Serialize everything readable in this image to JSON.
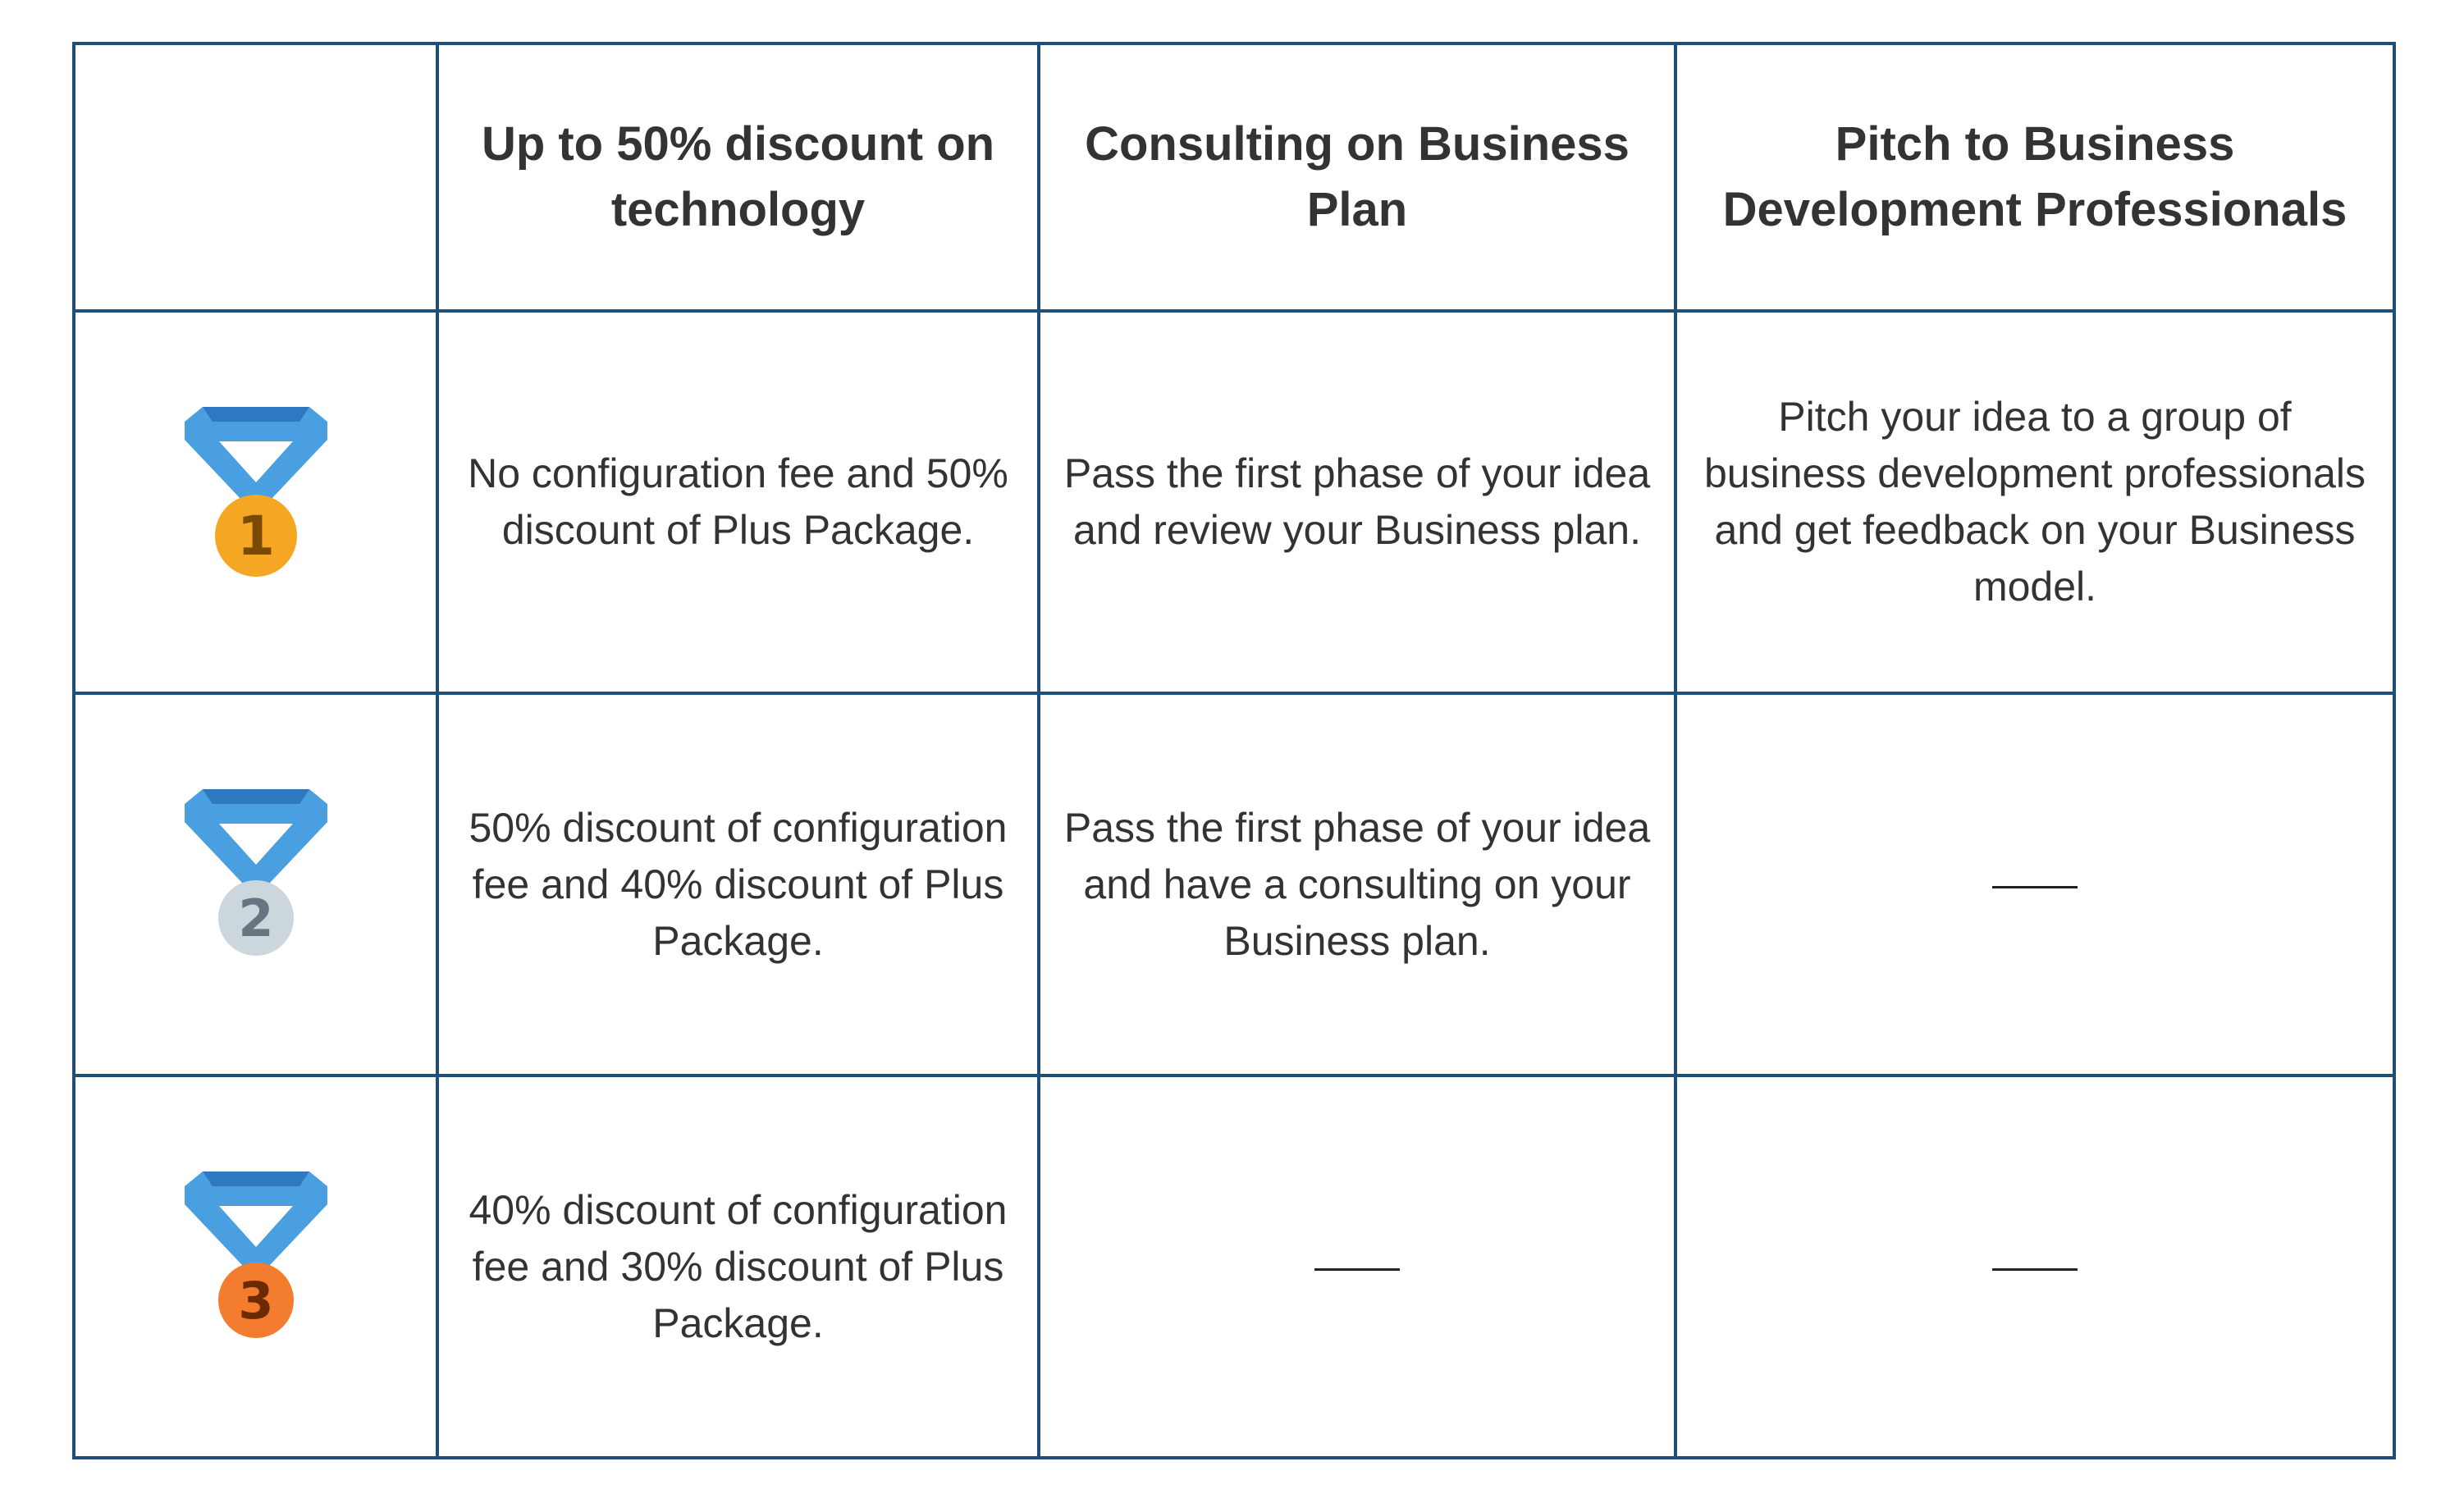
{
  "header": {
    "col_1": "Up to 50% discount on technology",
    "col_2": "Consulting on Business Plan",
    "col_3": "Pitch to Business Development Professionals"
  },
  "rows": [
    {
      "medal": {
        "icon": "gold-medal-icon",
        "number": "1",
        "ribbon_color": "#4a9fe0",
        "disc_color": "#f5a623"
      },
      "col_1": "No configuration fee and 50% discount of Plus Package.",
      "col_2": "Pass the first phase of your idea and review your Business plan.",
      "col_3": "Pitch your idea to a group of business development professionals and get feedback on your Business model."
    },
    {
      "medal": {
        "icon": "silver-medal-icon",
        "number": "2",
        "ribbon_color": "#4a9fe0",
        "disc_color": "#ccd6dd"
      },
      "col_1": "50% discount of configuration fee and 40% discount of Plus Package.",
      "col_2": "Pass the first phase of your idea and have a consulting on your Business plan.",
      "col_3": "——"
    },
    {
      "medal": {
        "icon": "bronze-medal-icon",
        "number": "3",
        "ribbon_color": "#4a9fe0",
        "disc_color": "#f47c2e"
      },
      "col_1": "40% discount of configuration fee and 30% discount of Plus Package.",
      "col_2": "——",
      "col_3": "——"
    }
  ],
  "colors": {
    "border": "#1f4e79",
    "text": "#333333",
    "ribbon": "#4a9fe0",
    "ribbon_dark": "#2e78c2"
  }
}
